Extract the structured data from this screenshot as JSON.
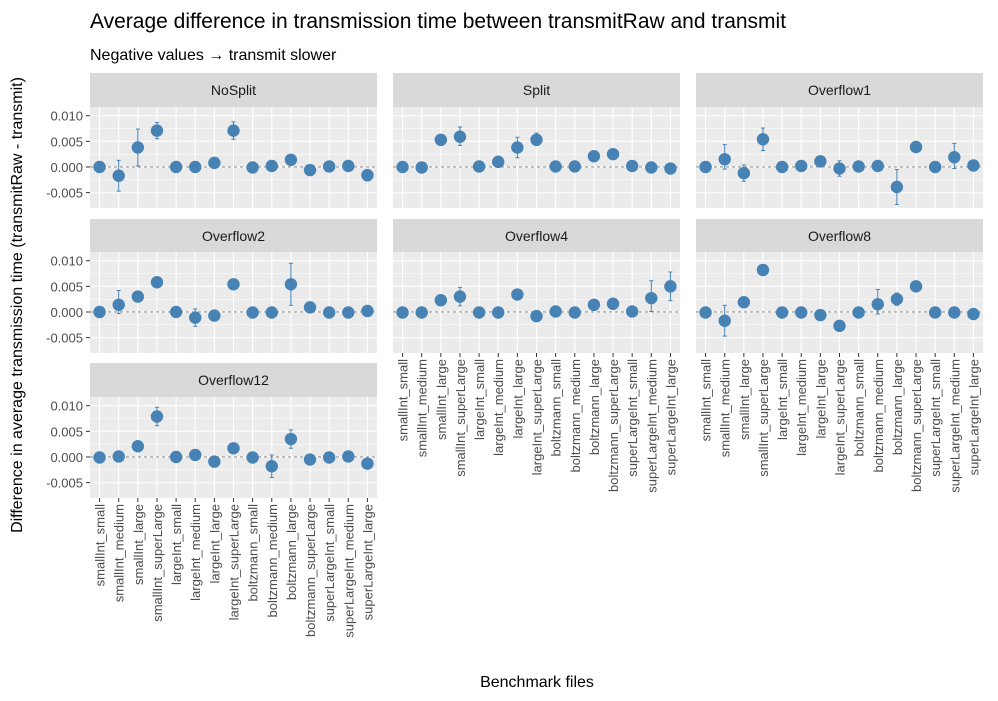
{
  "chart_data": {
    "type": "scatter",
    "title": "Average difference in transmission time between transmitRaw and transmit",
    "subtitle": "Negative values → transmit slower",
    "xlabel": "Benchmark files",
    "ylabel": "Difference in average transmission time (transmitRaw - transmit)",
    "ylim": [
      -0.008,
      0.0117
    ],
    "y_ticks": [
      -0.005,
      0.0,
      0.005,
      0.01
    ],
    "y_tick_labels": [
      "-0.005",
      "0.000",
      "0.005",
      "0.010"
    ],
    "grid": true,
    "legend": "none",
    "reference_line_y": 0,
    "categories": [
      "smallInt_small",
      "smallInt_medium",
      "smallInt_large",
      "smallInt_superLarge",
      "largeInt_small",
      "largeInt_medium",
      "largeInt_large",
      "largeInt_superLarge",
      "boltzmann_small",
      "boltzmann_medium",
      "boltzmann_large",
      "boltzmann_superLarge",
      "superLargeInt_small",
      "superLargeInt_medium",
      "superLargeInt_large"
    ],
    "colors": {
      "point": "#4682B4",
      "strip": "#D9D9D9",
      "panel": "#EBEBEB",
      "grid": "#FFFFFF",
      "text": "#000000",
      "tick_text": "#4D4D4D",
      "refline": "#7F7F7F"
    },
    "panels": [
      {
        "name": "NoSplit",
        "values": [
          0.0,
          -0.0017,
          0.0038,
          0.0071,
          0.0,
          0.0,
          0.0008,
          0.0071,
          -0.0001,
          0.0002,
          0.0014,
          -0.0006,
          0.0001,
          0.0002,
          -0.0016
        ],
        "lower": [
          -0.0003,
          -0.0047,
          0.0002,
          0.0055,
          -0.0003,
          -0.0003,
          0.0001,
          0.0054,
          -0.0005,
          -0.0003,
          0.0004,
          -0.0011,
          -0.0003,
          -0.0002,
          -0.0027
        ],
        "upper": [
          0.0003,
          0.0013,
          0.0074,
          0.0087,
          0.0003,
          0.0003,
          0.0015,
          0.0088,
          0.0003,
          0.0007,
          0.0024,
          -0.0001,
          0.0005,
          0.0006,
          -0.0005
        ]
      },
      {
        "name": "Split",
        "values": [
          0.0,
          -0.0001,
          0.0053,
          0.0059,
          0.0001,
          0.001,
          0.0038,
          0.0053,
          0.0001,
          0.0001,
          0.0021,
          0.0025,
          0.0002,
          -0.0001,
          -0.0003
        ],
        "lower": [
          -0.0003,
          -0.0004,
          0.0047,
          0.0042,
          -0.0003,
          0.0001,
          0.0018,
          0.0042,
          -0.0003,
          -0.0003,
          0.0016,
          0.0016,
          -0.0002,
          -0.0004,
          -0.0007
        ],
        "upper": [
          0.0003,
          0.0002,
          0.0059,
          0.0078,
          0.0005,
          0.0021,
          0.0058,
          0.0066,
          0.0005,
          0.0005,
          0.0026,
          0.0034,
          0.0006,
          0.0002,
          0.0001
        ]
      },
      {
        "name": "Overflow1",
        "values": [
          0.0,
          0.0015,
          -0.0012,
          0.0054,
          0.0,
          0.0002,
          0.0011,
          -0.0003,
          0.0001,
          0.0002,
          -0.0039,
          0.0039,
          0.0,
          0.0019,
          0.0003
        ],
        "lower": [
          -0.0003,
          -0.0004,
          -0.0028,
          0.0032,
          -0.0003,
          -0.0002,
          0.0006,
          -0.0018,
          -0.0003,
          -0.0002,
          -0.0073,
          0.0033,
          -0.0003,
          -0.0003,
          -0.0001
        ],
        "upper": [
          0.0003,
          0.0044,
          0.0004,
          0.0076,
          0.0003,
          0.0006,
          0.0016,
          0.0012,
          0.0005,
          0.0006,
          -0.0005,
          0.0045,
          0.0003,
          0.0046,
          0.0007
        ]
      },
      {
        "name": "Overflow2",
        "values": [
          0.0,
          0.0014,
          0.003,
          0.0058,
          0.0,
          -0.0011,
          -0.0007,
          0.0054,
          -0.0001,
          -0.0001,
          0.0054,
          0.0009,
          -0.0001,
          -0.0001,
          0.0002
        ],
        "lower": [
          -0.0003,
          -0.0003,
          0.0024,
          0.0051,
          -0.0003,
          -0.0028,
          -0.0011,
          0.0047,
          -0.0004,
          -0.0004,
          0.0013,
          0.0004,
          -0.0004,
          -0.0004,
          -0.0002
        ],
        "upper": [
          0.0003,
          0.0042,
          0.0036,
          0.0065,
          0.0003,
          0.0006,
          -0.0003,
          0.0061,
          0.0002,
          0.0002,
          0.0095,
          0.0014,
          0.0002,
          0.0002,
          0.0006
        ]
      },
      {
        "name": "Overflow4",
        "values": [
          -0.0001,
          -0.0001,
          0.0023,
          0.003,
          -0.0001,
          -0.0001,
          0.0034,
          -0.0008,
          0.0001,
          -0.0001,
          0.0014,
          0.0016,
          0.0001,
          0.0027,
          0.005
        ],
        "lower": [
          -0.0004,
          -0.0004,
          0.0017,
          0.0012,
          -0.0004,
          -0.0004,
          0.0028,
          -0.0012,
          -0.0003,
          -0.0004,
          0.0009,
          0.0005,
          -0.0003,
          0.0001,
          0.0022
        ],
        "upper": [
          0.0002,
          0.0002,
          0.0029,
          0.0048,
          0.0002,
          0.0002,
          0.004,
          -0.0004,
          0.0005,
          0.0002,
          0.0019,
          0.0027,
          0.0005,
          0.0061,
          0.0078
        ]
      },
      {
        "name": "Overflow8",
        "values": [
          -0.0001,
          -0.0017,
          0.0019,
          0.0082,
          -0.0001,
          -0.0001,
          -0.0006,
          -0.0027,
          -0.0001,
          0.0015,
          0.0025,
          0.005,
          -0.0001,
          -0.0001,
          -0.0004
        ],
        "lower": [
          -0.0004,
          -0.0047,
          0.0013,
          0.0075,
          -0.0004,
          -0.0004,
          -0.001,
          -0.0033,
          -0.0004,
          -0.0004,
          0.0013,
          0.0044,
          -0.0004,
          -0.0004,
          -0.0008
        ],
        "upper": [
          0.0002,
          0.0013,
          0.0025,
          0.0089,
          0.0002,
          0.0002,
          -0.0002,
          -0.0021,
          0.0002,
          0.0044,
          0.0037,
          0.0056,
          0.0002,
          0.0002,
          0.0
        ]
      },
      {
        "name": "Overflow12",
        "values": [
          -0.0001,
          0.0001,
          0.0021,
          0.0079,
          0.0,
          0.0004,
          -0.0009,
          0.0017,
          -0.0001,
          -0.0018,
          0.0035,
          -0.0005,
          -0.0001,
          0.0001,
          -0.0013
        ],
        "lower": [
          -0.0004,
          -0.0002,
          0.0015,
          0.0061,
          -0.0003,
          0.0,
          -0.0013,
          0.0011,
          -0.0004,
          -0.004,
          0.0017,
          -0.001,
          -0.0004,
          -0.0002,
          -0.0023
        ],
        "upper": [
          0.0002,
          0.0004,
          0.0027,
          0.0097,
          0.0003,
          0.0008,
          -0.0005,
          0.0023,
          0.0002,
          0.0004,
          0.0053,
          0.0,
          0.0002,
          0.0004,
          -0.0003
        ]
      }
    ]
  }
}
